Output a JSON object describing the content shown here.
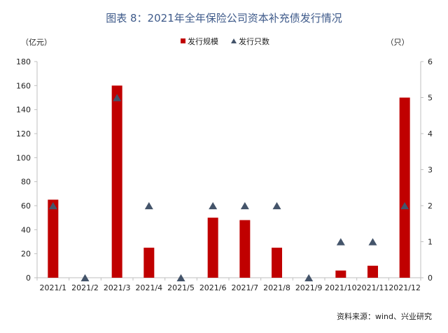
{
  "colors": {
    "bar": "#c00000",
    "marker": "#44546a",
    "axis": "#bfbfbf",
    "title": "#3e5a8a"
  },
  "chart_data": {
    "type": "bar",
    "title": "图表 8：2021年全年保险公司资本补充债发行情况",
    "categories": [
      "2021/1",
      "2021/2",
      "2021/3",
      "2021/4",
      "2021/5",
      "2021/6",
      "2021/7",
      "2021/8",
      "2021/9",
      "2021/10",
      "2021/11",
      "2021/12"
    ],
    "left_axis": {
      "unit": "（亿元）",
      "range": [
        0,
        180
      ],
      "ticks": [
        0,
        20,
        40,
        60,
        80,
        100,
        120,
        140,
        160,
        180
      ]
    },
    "right_axis": {
      "unit": "（只）",
      "range": [
        0,
        6
      ],
      "ticks": [
        0,
        1,
        2,
        3,
        4,
        5,
        6
      ]
    },
    "series": [
      {
        "name": "发行规模",
        "type": "bar",
        "axis": "left",
        "values": [
          65,
          0,
          160,
          25,
          0,
          50,
          48,
          25,
          0,
          6,
          10,
          150
        ]
      },
      {
        "name": "发行只数",
        "type": "scatter",
        "marker": "triangle",
        "axis": "right",
        "values": [
          2,
          0,
          5,
          2,
          0,
          2,
          2,
          2,
          0,
          1,
          1,
          2
        ]
      }
    ],
    "legend_position": "top-center",
    "grid": false
  },
  "source": "资料来源：wind、兴业研究"
}
